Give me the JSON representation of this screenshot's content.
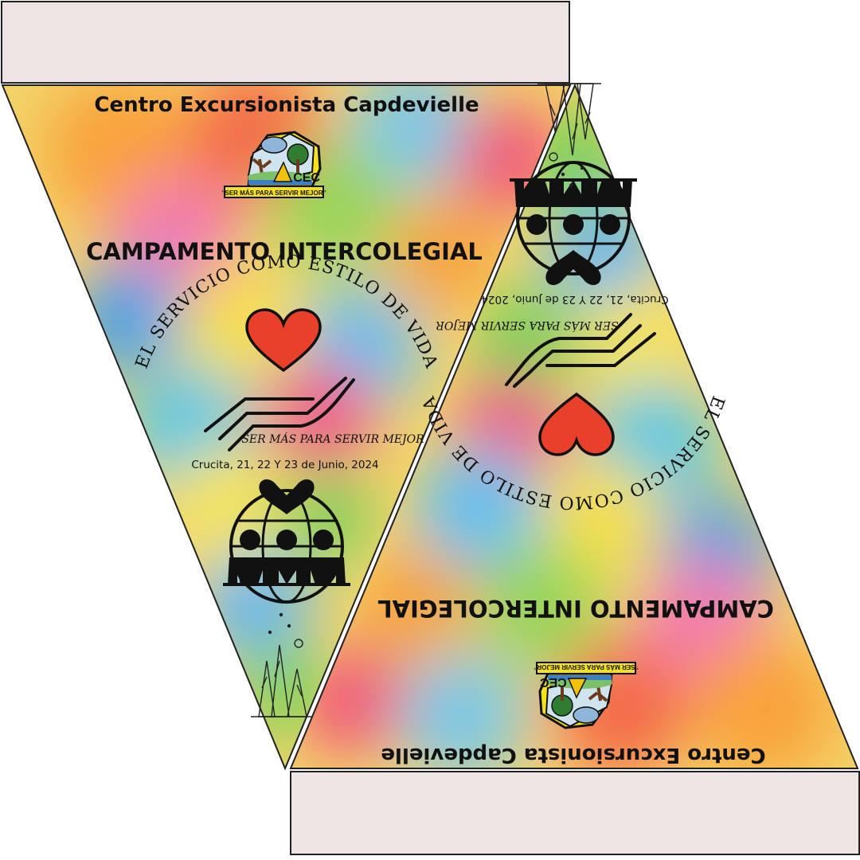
{
  "pennant": {
    "organization": "Centro Excursionista Capdevielle",
    "event_title": "CAMPAMENTO INTERCOLEGIAL",
    "theme": "EL SERVICIO COMO ESTILO DE VIDA",
    "motto": "SER MÁS PARA SERVIR MEJOR",
    "date_place": "Crucita, 21, 22 Y 23 de Junio, 2024",
    "logo": {
      "abbreviation": "CEC",
      "motto_banner": "\"SER MÁS PARA SERVIR MEJOR\""
    }
  },
  "colors": {
    "strip_fill": "#efe4e4",
    "outline": "#1a1a1a",
    "heart": "#e8402a",
    "logo_yellow": "#f5e21c"
  }
}
